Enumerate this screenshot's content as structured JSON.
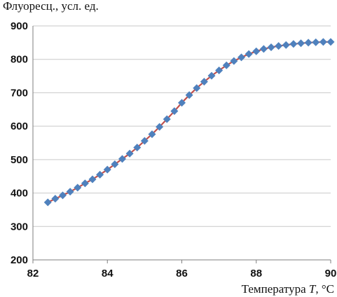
{
  "chart_data": {
    "type": "line",
    "title": "",
    "ylabel": "Флуоресц., усл. ед.",
    "xlabel_prefix": "Температура ",
    "xlabel_var": "T",
    "xlabel_unit": ",  °C",
    "xlim": [
      82,
      90
    ],
    "ylim": [
      200,
      900
    ],
    "xticks": [
      82,
      84,
      86,
      88,
      90
    ],
    "yticks": [
      200,
      300,
      400,
      500,
      600,
      700,
      800,
      900
    ],
    "grid": true,
    "colors": {
      "markers": "#4f81bd",
      "fit_line": "#c0504d",
      "grid": "#c9c9c9",
      "axis": "#7f7f7f"
    },
    "series": [
      {
        "marker": "diamond",
        "x": [
          82.4,
          82.6,
          82.8,
          83.0,
          83.2,
          83.4,
          83.6,
          83.8,
          84.0,
          84.2,
          84.4,
          84.6,
          84.8,
          85.0,
          85.2,
          85.4,
          85.6,
          85.8,
          86.0,
          86.2,
          86.4,
          86.6,
          86.8,
          87.0,
          87.2,
          87.4,
          87.6,
          87.8,
          88.0,
          88.2,
          88.4,
          88.6,
          88.8,
          89.0,
          89.2,
          89.4,
          89.6,
          89.8,
          90.0
        ],
        "y": [
          372,
          383,
          393,
          404,
          416,
          429,
          441,
          455,
          470,
          486,
          502,
          518,
          536,
          556,
          576,
          598,
          621,
          645,
          670,
          693,
          714,
          733,
          751,
          767,
          782,
          795,
          806,
          816,
          824,
          831,
          836,
          840,
          843,
          846,
          848,
          850,
          851,
          852,
          852
        ]
      }
    ]
  }
}
